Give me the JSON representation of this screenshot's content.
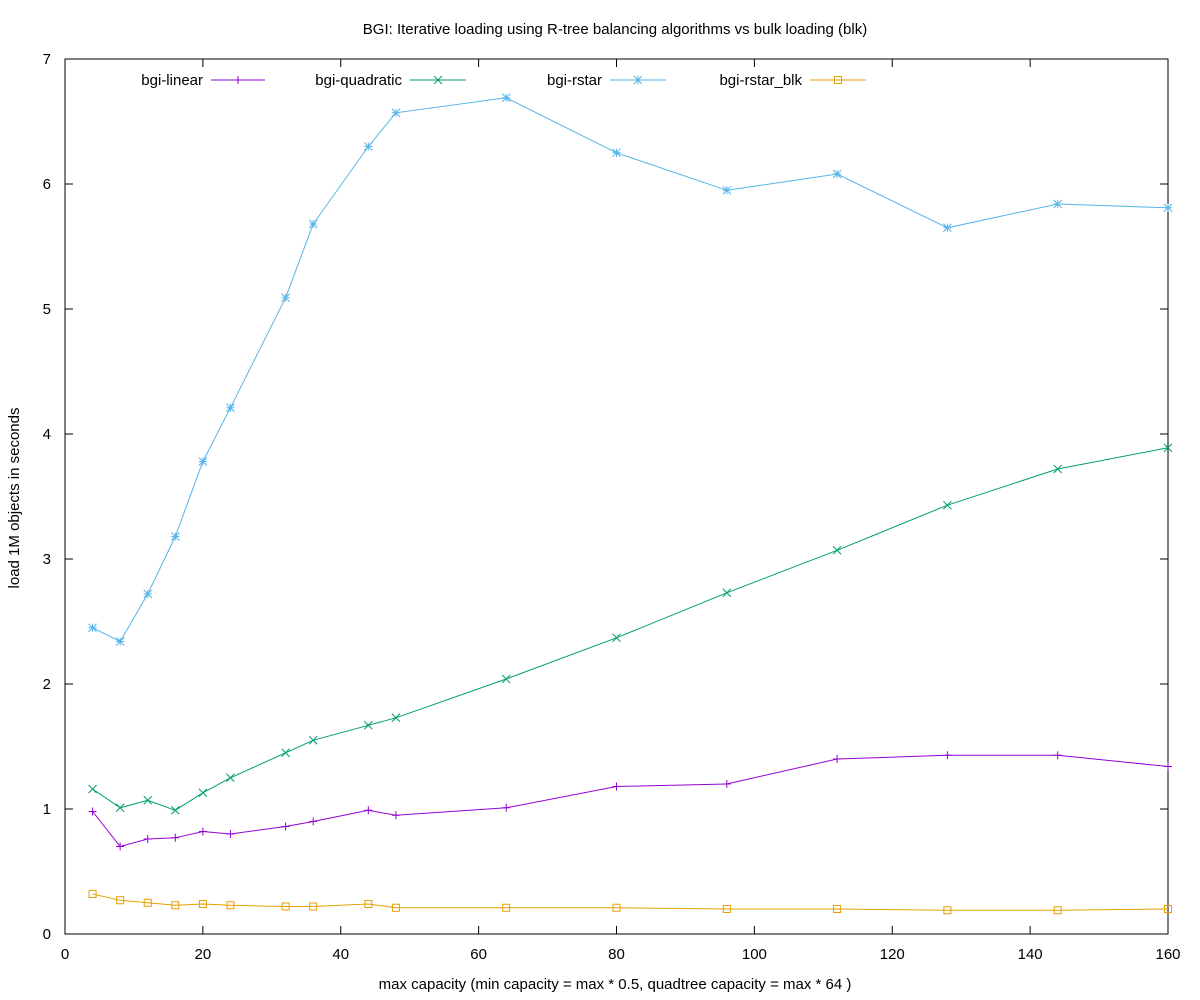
{
  "chart_data": {
    "type": "line",
    "title": "BGI: Iterative loading using R-tree balancing algorithms vs bulk loading (blk)",
    "xlabel": "max capacity (min capacity = max * 0.5, quadtree capacity = max * 64 )",
    "ylabel": "load 1M objects in seconds",
    "xlim": [
      0,
      160
    ],
    "ylim": [
      0,
      7
    ],
    "xticks": [
      0,
      20,
      40,
      60,
      80,
      100,
      120,
      140,
      160
    ],
    "yticks": [
      0,
      1,
      2,
      3,
      4,
      5,
      6,
      7
    ],
    "xtick_labels": [
      "0",
      "20",
      "40",
      "60",
      "80",
      "100",
      "120",
      "140",
      "160"
    ],
    "ytick_labels": [
      "0",
      "1",
      "2",
      "3",
      "4",
      "5",
      "6",
      "7"
    ],
    "grid": false,
    "legend_position": "top, horizontal",
    "x": [
      4,
      8,
      12,
      16,
      20,
      24,
      32,
      36,
      44,
      48,
      64,
      80,
      96,
      112,
      128,
      144,
      160
    ],
    "series": [
      {
        "name": "bgi-linear",
        "color": "#9400d3",
        "marker": "plus",
        "values": [
          0.98,
          0.7,
          0.76,
          0.77,
          0.82,
          0.8,
          0.86,
          0.9,
          0.99,
          0.95,
          1.01,
          1.18,
          1.2,
          1.4,
          1.43,
          1.43,
          1.34
        ]
      },
      {
        "name": "bgi-quadratic",
        "color": "#009e73",
        "marker": "cross",
        "values": [
          1.16,
          1.01,
          1.07,
          0.99,
          1.13,
          1.25,
          1.45,
          1.55,
          1.67,
          1.73,
          2.04,
          2.37,
          2.73,
          3.07,
          3.43,
          3.72,
          3.89
        ]
      },
      {
        "name": "bgi-rstar",
        "color": "#56b4e9",
        "marker": "star",
        "values": [
          2.45,
          2.34,
          2.72,
          3.18,
          3.78,
          4.21,
          5.09,
          5.68,
          6.3,
          6.57,
          6.69,
          6.25,
          5.95,
          6.08,
          5.65,
          5.84,
          5.81
        ]
      },
      {
        "name": "bgi-rstar_blk",
        "color": "#e69f00",
        "marker": "square",
        "values": [
          0.32,
          0.27,
          0.25,
          0.23,
          0.24,
          0.23,
          0.22,
          0.22,
          0.24,
          0.21,
          0.21,
          0.21,
          0.2,
          0.2,
          0.19,
          0.19,
          0.2
        ]
      }
    ]
  }
}
